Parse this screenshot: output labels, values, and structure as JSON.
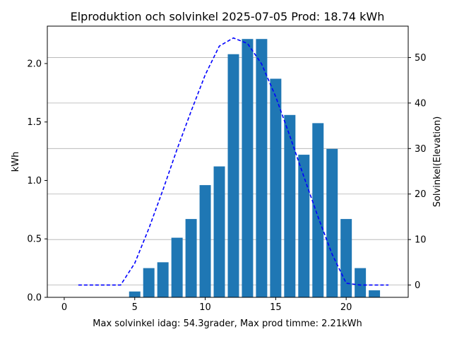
{
  "chart_data": {
    "type": "bar",
    "title": "Elproduktion och solvinkel 2025-07-05 Prod: 18.74 kWh",
    "xlabel": "Max solvinkel idag: 54.3grader, Max prod timme: 2.21kWh",
    "ylabel": "kWh",
    "ylabel_right": "Solvinkel(Elevation)",
    "xlim": [
      -1.2,
      24.4
    ],
    "ylim": [
      0,
      2.32
    ],
    "ylim_right": [
      -2.7,
      56.9
    ],
    "x_ticks": [
      0,
      5,
      10,
      15,
      20
    ],
    "y_ticks": [
      0.0,
      0.5,
      1.0,
      1.5,
      2.0
    ],
    "y_ticks_right": [
      0,
      10,
      20,
      30,
      40,
      50
    ],
    "grid": "horizontal lines at right-axis ticks",
    "colors": {
      "bars": "#1f77b4",
      "elevation_line": "#0000ff",
      "right_axis_label": "#0000ff"
    },
    "series": [
      {
        "type": "bar",
        "axis": "left",
        "x": [
          5,
          6,
          7,
          8,
          9,
          10,
          11,
          12,
          13,
          14,
          15,
          16,
          17,
          18,
          19,
          20,
          21,
          22
        ],
        "values": [
          0.05,
          0.25,
          0.3,
          0.51,
          0.67,
          0.96,
          1.12,
          2.08,
          2.21,
          2.21,
          1.87,
          1.56,
          1.22,
          1.49,
          1.27,
          0.67,
          0.25,
          0.06
        ]
      },
      {
        "type": "line",
        "style": "dashed",
        "axis": "right",
        "x": [
          1,
          2,
          3,
          4,
          5,
          6,
          7,
          8,
          9,
          10,
          11,
          12,
          13,
          14,
          15,
          16,
          17,
          18,
          19,
          20,
          21,
          22,
          23
        ],
        "values": [
          0,
          0,
          0,
          0,
          4.8,
          12.4,
          20.9,
          29.8,
          38.2,
          46.2,
          52.5,
          54.3,
          53.1,
          48.6,
          41.4,
          32.8,
          23.8,
          15.0,
          6.8,
          0.4,
          0,
          0,
          0
        ]
      }
    ]
  }
}
